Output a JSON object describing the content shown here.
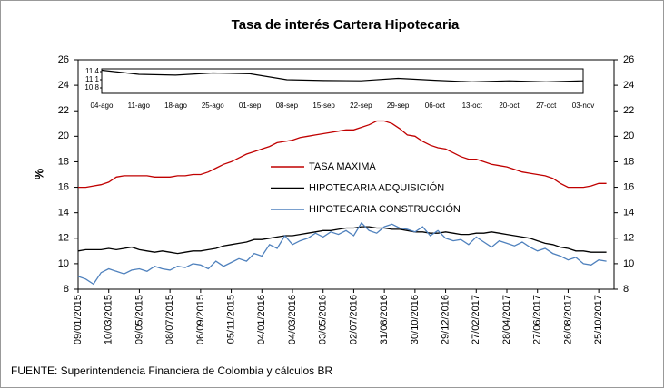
{
  "chart_data": {
    "type": "line",
    "title": "Tasa de interés Cartera Hipotecaria",
    "ylabel": "%",
    "source": "FUENTE:  Superintendencia Financiera de Colombia y cálculos BR",
    "categories": [
      "09/01/2015",
      null,
      null,
      null,
      "10/03/2015",
      null,
      null,
      null,
      "09/05/2015",
      null,
      null,
      null,
      "08/07/2015",
      null,
      null,
      null,
      "06/09/2015",
      null,
      null,
      null,
      "05/11/2015",
      null,
      null,
      null,
      "04/01/2016",
      null,
      null,
      null,
      "04/03/2016",
      null,
      null,
      null,
      "03/05/2016",
      null,
      null,
      null,
      "02/07/2016",
      null,
      null,
      null,
      "31/08/2016",
      null,
      null,
      null,
      "30/10/2016",
      null,
      null,
      null,
      "29/12/2016",
      null,
      null,
      null,
      "27/02/2017",
      null,
      null,
      null,
      "28/04/2017",
      null,
      null,
      null,
      "27/06/2017",
      null,
      null,
      null,
      "26/08/2017",
      null,
      null,
      null,
      "25/10/2017",
      null
    ],
    "series": [
      {
        "name": "TASA MAXIMA",
        "color": "#c00000",
        "values": [
          16.0,
          16.0,
          16.1,
          16.2,
          16.4,
          16.8,
          16.9,
          16.9,
          16.9,
          16.9,
          16.8,
          16.8,
          16.8,
          16.9,
          16.9,
          17.0,
          17.0,
          17.2,
          17.5,
          17.8,
          18.0,
          18.3,
          18.6,
          18.8,
          19.0,
          19.2,
          19.5,
          19.6,
          19.7,
          19.9,
          20.0,
          20.1,
          20.2,
          20.3,
          20.4,
          20.5,
          20.5,
          20.7,
          20.9,
          21.2,
          21.2,
          21.0,
          20.6,
          20.1,
          20.0,
          19.6,
          19.3,
          19.1,
          19.0,
          18.7,
          18.4,
          18.2,
          18.2,
          18.0,
          17.8,
          17.7,
          17.6,
          17.4,
          17.2,
          17.1,
          17.0,
          16.9,
          16.7,
          16.3,
          16.0,
          16.0,
          16.0,
          16.1,
          16.3,
          16.3
        ]
      },
      {
        "name": "HIPOTECARIA ADQUISICIÓN",
        "color": "#000000",
        "values": [
          11.0,
          11.1,
          11.1,
          11.1,
          11.2,
          11.1,
          11.2,
          11.3,
          11.1,
          11.0,
          10.9,
          11.0,
          10.9,
          10.8,
          10.9,
          11.0,
          11.0,
          11.1,
          11.2,
          11.4,
          11.5,
          11.6,
          11.7,
          11.9,
          11.9,
          12.0,
          12.1,
          12.2,
          12.2,
          12.3,
          12.4,
          12.5,
          12.6,
          12.6,
          12.7,
          12.8,
          12.8,
          12.9,
          12.9,
          12.8,
          12.8,
          12.7,
          12.7,
          12.6,
          12.5,
          12.5,
          12.4,
          12.4,
          12.5,
          12.4,
          12.3,
          12.3,
          12.4,
          12.4,
          12.5,
          12.4,
          12.3,
          12.2,
          12.1,
          12.0,
          11.8,
          11.6,
          11.5,
          11.3,
          11.2,
          11.0,
          11.0,
          10.9,
          10.9,
          10.9
        ]
      },
      {
        "name": "HIPOTECARIA CONSTRUCCIÓN",
        "color": "#4f81bd",
        "values": [
          9.0,
          8.8,
          8.4,
          9.3,
          9.6,
          9.4,
          9.2,
          9.5,
          9.6,
          9.4,
          9.8,
          9.6,
          9.5,
          9.8,
          9.7,
          10.0,
          9.9,
          9.6,
          10.2,
          9.8,
          10.1,
          10.4,
          10.2,
          10.8,
          10.6,
          11.5,
          11.2,
          12.2,
          11.5,
          11.8,
          12.0,
          12.4,
          12.1,
          12.5,
          12.3,
          12.6,
          12.2,
          13.2,
          12.6,
          12.4,
          12.9,
          13.1,
          12.8,
          12.7,
          12.5,
          12.9,
          12.2,
          12.6,
          12.0,
          11.8,
          11.9,
          11.5,
          12.1,
          11.7,
          11.3,
          11.8,
          11.6,
          11.4,
          11.7,
          11.3,
          11.0,
          11.2,
          10.8,
          10.6,
          10.3,
          10.5,
          10.0,
          9.9,
          10.3,
          10.2
        ]
      }
    ],
    "ylim": [
      8,
      26
    ],
    "yticks": [
      8,
      10,
      12,
      14,
      16,
      18,
      20,
      22,
      24,
      26
    ],
    "y2lim": [
      8,
      26
    ],
    "y2ticks": [
      8,
      10,
      12,
      14,
      16,
      18,
      20,
      22,
      24,
      26
    ],
    "inset": {
      "type": "line",
      "categories": [
        "04-ago",
        "11-ago",
        "18-ago",
        "25-ago",
        "01-sep",
        "08-sep",
        "15-sep",
        "22-sep",
        "29-sep",
        "06-oct",
        "13-oct",
        "20-oct",
        "27-oct",
        "03-nov"
      ],
      "values": [
        11.45,
        11.3,
        11.27,
        11.35,
        11.32,
        11.1,
        11.07,
        11.06,
        11.15,
        11.08,
        11.02,
        11.06,
        11.02,
        11.06
      ],
      "color": "#000000",
      "ylim": [
        10.6,
        11.5
      ],
      "yticks": [
        10.8,
        11.1,
        11.4
      ]
    }
  }
}
